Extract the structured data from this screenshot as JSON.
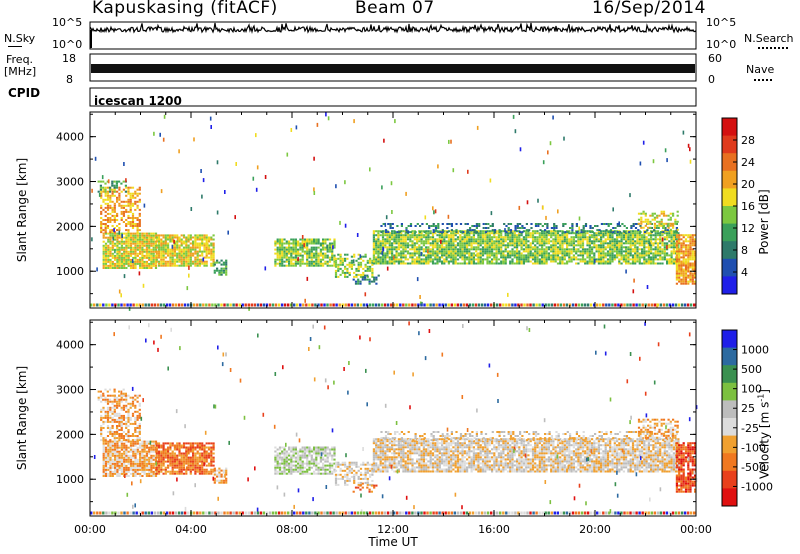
{
  "header": {
    "station": "Kapuskasing (fitACF)",
    "beam": "Beam 07",
    "date": "16/Sep/2014"
  },
  "strips": {
    "nsky_label": "N.Sky",
    "nsky_ticks": [
      "10^5",
      "10^0"
    ],
    "nsearch_label": "N.Search",
    "nsearch_ticks": [
      "10^5",
      "10^0"
    ],
    "freq_label": "Freq.",
    "freq_unit": "[MHz]",
    "freq_ticks": [
      "18",
      "8"
    ],
    "nave_label": "Nave",
    "nave_ticks": [
      "60",
      "0"
    ],
    "cpid_label": "CPID",
    "cpid_value": "icescan 1200"
  },
  "colors": {
    "power": [
      "#1f1fe8",
      "#1f4fb0",
      "#2e7a6a",
      "#3aa05a",
      "#7cc840",
      "#f0dc20",
      "#f0a020",
      "#e87020",
      "#e03a1c",
      "#d41010"
    ],
    "velocity": [
      "#1f1fe8",
      "#2c6aa0",
      "#3a9050",
      "#7cc040",
      "#bdbdbd",
      "#dcdcdc",
      "#f0a030",
      "#f07820",
      "#e8401c",
      "#e01010"
    ]
  },
  "chart_data": [
    {
      "type": "heatmap",
      "title": "Power",
      "xlabel": "Time UT",
      "ylabel": "Slant Range [km]",
      "x_ticks": [
        "00:00",
        "04:00",
        "08:00",
        "12:00",
        "16:00",
        "20:00",
        "00:00"
      ],
      "xlim_hours": [
        0,
        24
      ],
      "y_ticks": [
        1000,
        2000,
        3000,
        4000
      ],
      "ylim": [
        180,
        4550
      ],
      "colorbar_label": "Power [dB]",
      "colorbar_ticks": [
        4,
        8,
        12,
        16,
        20,
        24,
        28
      ],
      "colorbar_range": [
        0,
        30
      ]
    },
    {
      "type": "heatmap",
      "title": "Velocity",
      "xlabel": "Time UT",
      "ylabel": "Slant Range [km]",
      "x_ticks": [
        "00:00",
        "04:00",
        "08:00",
        "12:00",
        "16:00",
        "20:00",
        "00:00"
      ],
      "xlim_hours": [
        0,
        24
      ],
      "y_ticks": [
        1000,
        2000,
        3000,
        4000
      ],
      "ylim": [
        180,
        4550
      ],
      "colorbar_label": "Velocity [m s",
      "colorbar_label_sup": "-1",
      "colorbar_label_end": "]",
      "colorbar_ticks": [
        "1000",
        "500",
        "100",
        "25",
        "-25",
        "-100",
        "-500",
        "-1000"
      ]
    }
  ]
}
